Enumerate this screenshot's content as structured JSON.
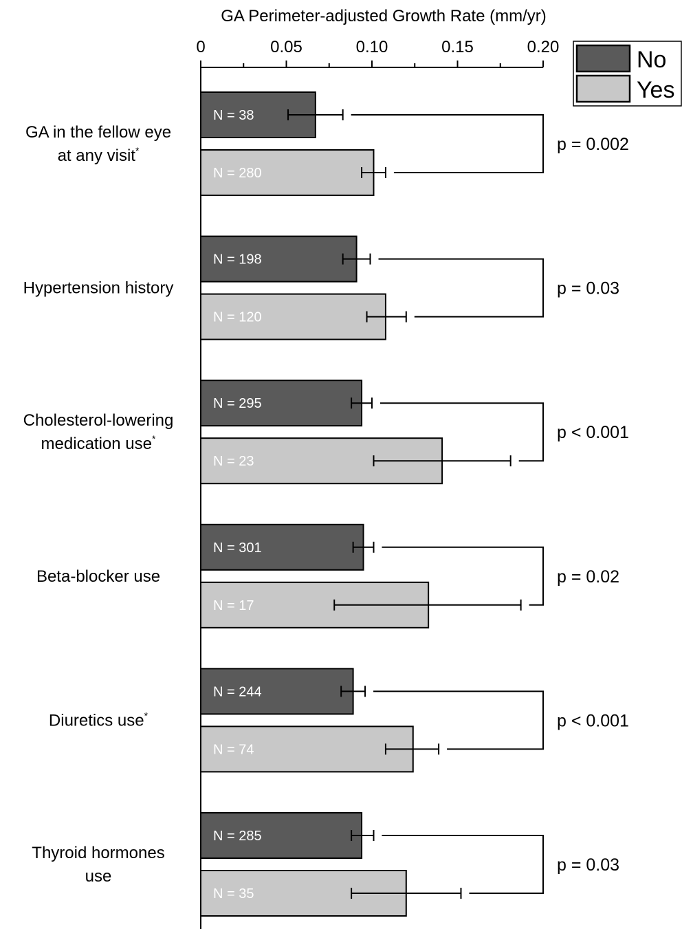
{
  "chart_data": {
    "type": "bar",
    "orientation": "horizontal",
    "title": "",
    "xlabel": "GA Perimeter-adjusted Growth Rate (mm/yr)",
    "ylabel": "",
    "xlim": [
      0,
      0.2
    ],
    "major_ticks": [
      0,
      0.05,
      0.1,
      0.15,
      0.2
    ],
    "tick_labels": [
      "0",
      "0.05",
      "0.10",
      "0.15",
      "0.20"
    ],
    "minor_tick_step": 0.025,
    "grid": false,
    "legend": {
      "placement": "top-right",
      "entries": [
        {
          "label": "No",
          "color": "#5a5a5a"
        },
        {
          "label": "Yes",
          "color": "#c8c8c8"
        }
      ]
    },
    "series": [
      {
        "name": "No",
        "color": "#5a5a5a"
      },
      {
        "name": "Yes",
        "color": "#c8c8c8"
      }
    ],
    "groups": [
      {
        "label_lines": [
          "GA in the fellow eye",
          "at any visit"
        ],
        "asterisk": true,
        "p_value": "p = 0.002",
        "bars": [
          {
            "series": "No",
            "n_label": "N = 38",
            "value": 0.067,
            "err_low": 0.051,
            "err_high": 0.083
          },
          {
            "series": "Yes",
            "n_label": "N = 280",
            "value": 0.101,
            "err_low": 0.094,
            "err_high": 0.108
          }
        ]
      },
      {
        "label_lines": [
          "Hypertension history"
        ],
        "asterisk": false,
        "p_value": "p = 0.03",
        "bars": [
          {
            "series": "No",
            "n_label": "N = 198",
            "value": 0.091,
            "err_low": 0.083,
            "err_high": 0.099
          },
          {
            "series": "Yes",
            "n_label": "N = 120",
            "value": 0.108,
            "err_low": 0.097,
            "err_high": 0.12
          }
        ]
      },
      {
        "label_lines": [
          "Cholesterol-lowering",
          "medication use"
        ],
        "asterisk": true,
        "p_value": "p < 0.001",
        "bars": [
          {
            "series": "No",
            "n_label": "N = 295",
            "value": 0.094,
            "err_low": 0.088,
            "err_high": 0.1
          },
          {
            "series": "Yes",
            "n_label": "N = 23",
            "value": 0.141,
            "err_low": 0.101,
            "err_high": 0.181
          }
        ]
      },
      {
        "label_lines": [
          "Beta-blocker use"
        ],
        "asterisk": false,
        "p_value": "p = 0.02",
        "bars": [
          {
            "series": "No",
            "n_label": "N = 301",
            "value": 0.095,
            "err_low": 0.089,
            "err_high": 0.101
          },
          {
            "series": "Yes",
            "n_label": "N = 17",
            "value": 0.133,
            "err_low": 0.078,
            "err_high": 0.187
          }
        ]
      },
      {
        "label_lines": [
          "Diuretics use"
        ],
        "asterisk": true,
        "p_value": "p < 0.001",
        "bars": [
          {
            "series": "No",
            "n_label": "N = 244",
            "value": 0.089,
            "err_low": 0.082,
            "err_high": 0.096
          },
          {
            "series": "Yes",
            "n_label": "N = 74",
            "value": 0.124,
            "err_low": 0.108,
            "err_high": 0.139
          }
        ]
      },
      {
        "label_lines": [
          "Thyroid hormones",
          "use"
        ],
        "asterisk": false,
        "p_value": "p = 0.03",
        "bars": [
          {
            "series": "No",
            "n_label": "N = 285",
            "value": 0.094,
            "err_low": 0.088,
            "err_high": 0.101
          },
          {
            "series": "Yes",
            "n_label": "N = 35",
            "value": 0.12,
            "err_low": 0.088,
            "err_high": 0.152
          }
        ]
      }
    ]
  }
}
